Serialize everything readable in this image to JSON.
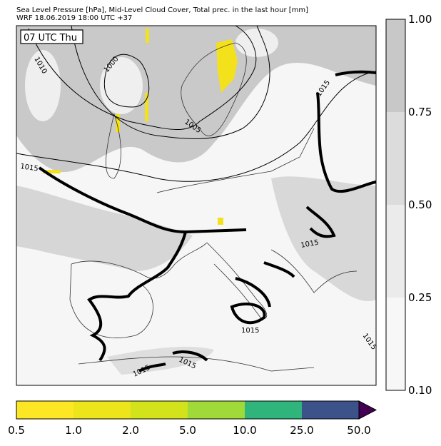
{
  "header": {
    "line1": "Sea Level Pressure [hPa], Mid-Level Cloud Cover, Total prec. in the last hour [mm]",
    "line2": "WRF 18.06.2019 18:00 UTC +37"
  },
  "map": {
    "time_label": "07 UTC Thu",
    "contour_labels": [
      "1010",
      "1000",
      "1005",
      "1015",
      "1015",
      "1015",
      "1015",
      "1015",
      "1015",
      "1015"
    ]
  },
  "cloud_colorbar": {
    "labels": [
      "1.00",
      "0.75",
      "0.50",
      "0.25",
      "0.10"
    ]
  },
  "precip_colorbar": {
    "labels": [
      "0.5",
      "1.0",
      "2.0",
      "5.0",
      "10.0",
      "25.0",
      "50.0"
    ]
  }
}
